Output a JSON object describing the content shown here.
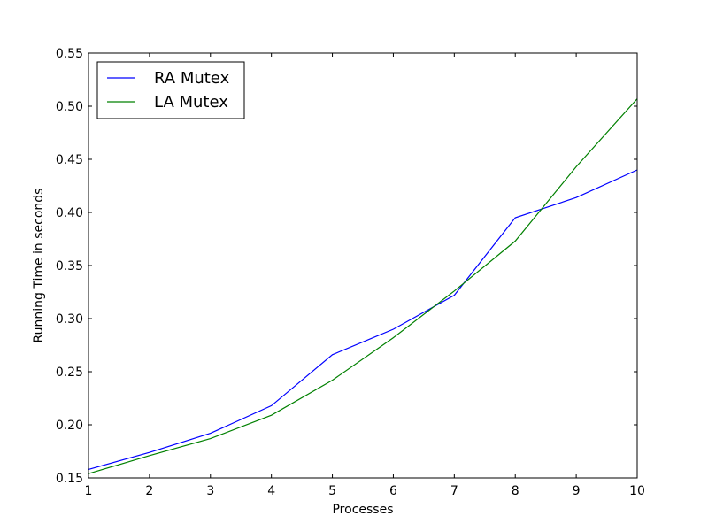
{
  "chart_data": {
    "type": "line",
    "title": "",
    "xlabel": "Processes",
    "ylabel": "Running Time in seconds",
    "x": [
      1,
      2,
      3,
      4,
      5,
      6,
      7,
      8,
      9,
      10
    ],
    "xlim": [
      1,
      10
    ],
    "ylim": [
      0.15,
      0.55
    ],
    "x_ticks": [
      "1",
      "2",
      "3",
      "4",
      "5",
      "6",
      "7",
      "8",
      "9",
      "10"
    ],
    "y_ticks": [
      "0.15",
      "0.20",
      "0.25",
      "0.30",
      "0.35",
      "0.40",
      "0.45",
      "0.50",
      "0.55"
    ],
    "grid": false,
    "legend_position": "top-left",
    "series": [
      {
        "name": "RA Mutex",
        "color": "#0000ff",
        "values": [
          0.158,
          0.174,
          0.192,
          0.218,
          0.266,
          0.29,
          0.322,
          0.395,
          0.414,
          0.44
        ]
      },
      {
        "name": "LA Mutex",
        "color": "#008000",
        "values": [
          0.154,
          0.171,
          0.187,
          0.209,
          0.242,
          0.282,
          0.326,
          0.373,
          0.443,
          0.507
        ]
      }
    ]
  }
}
